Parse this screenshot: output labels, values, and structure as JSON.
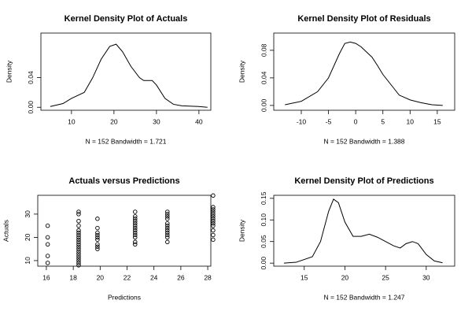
{
  "chart_data": [
    {
      "type": "line",
      "title": "Kernel Density Plot of Actuals",
      "ylabel": "Density",
      "xlabel": "N = 152   Bandwidth = 1.721",
      "color": "#000000",
      "x": [
        5,
        8,
        10,
        13,
        15,
        17,
        19,
        20.5,
        22,
        24,
        26,
        27,
        29,
        30,
        32,
        34,
        36,
        40,
        42
      ],
      "values": [
        0.001,
        0.005,
        0.012,
        0.02,
        0.04,
        0.065,
        0.082,
        0.085,
        0.075,
        0.055,
        0.04,
        0.036,
        0.036,
        0.03,
        0.012,
        0.004,
        0.002,
        0.001,
        0.0
      ],
      "xlim": [
        2.8,
        42.8
      ],
      "ylim": [
        -0.004,
        0.1
      ],
      "xticks": [
        10,
        20,
        30,
        40
      ],
      "yticks": [
        {
          "value": 0,
          "label": "0.00"
        },
        0.04
      ]
    },
    {
      "type": "line",
      "title": "Kernel Density Plot of Residuals",
      "ylabel": "Density",
      "xlabel": "N = 152   Bandwidth = 1.388",
      "color": "#000000",
      "x": [
        -13,
        -10,
        -7,
        -5,
        -3,
        -2,
        -1,
        0,
        1,
        3,
        4,
        5,
        7,
        8,
        10,
        12,
        14,
        16
      ],
      "values": [
        0.001,
        0.006,
        0.02,
        0.04,
        0.075,
        0.09,
        0.092,
        0.09,
        0.085,
        0.07,
        0.058,
        0.045,
        0.025,
        0.015,
        0.008,
        0.004,
        0.001,
        0.0
      ],
      "xlim": [
        -15.06,
        18.2
      ],
      "ylim": [
        -0.007,
        0.105
      ],
      "xticks": [
        -10,
        -5,
        0,
        5,
        10,
        15
      ],
      "yticks": [
        {
          "value": 0,
          "label": "0.00"
        },
        0.04,
        0.08
      ]
    },
    {
      "type": "scatter",
      "title": "Actuals versus Predictions",
      "ylabel": "Actuals",
      "xlabel": "Predictions",
      "color": "#000000",
      "x": [
        16.1,
        16.1,
        16.1,
        16.1,
        16.1,
        18.4,
        18.4,
        18.4,
        18.4,
        18.4,
        18.4,
        18.4,
        18.4,
        18.4,
        18.4,
        18.4,
        18.4,
        18.4,
        18.4,
        18.4,
        18.4,
        18.4,
        18.4,
        18.4,
        18.4,
        19.8,
        19.8,
        19.8,
        19.8,
        19.8,
        19.8,
        19.8,
        19.8,
        19.8,
        22.6,
        22.6,
        22.6,
        22.6,
        22.6,
        22.6,
        22.6,
        22.6,
        22.6,
        22.6,
        22.6,
        22.6,
        22.6,
        25,
        25,
        25,
        25,
        25,
        25,
        25,
        25,
        25,
        25,
        25,
        25,
        28.4,
        28.4,
        28.4,
        28.4,
        28.4,
        28.4,
        28.4,
        28.4,
        28.4,
        28.4,
        28.4,
        28.4,
        28.4
      ],
      "values": [
        9,
        12,
        17,
        20,
        25,
        8,
        9,
        10,
        11,
        12,
        13,
        14,
        15,
        16,
        17,
        18,
        19,
        20,
        21,
        22,
        23,
        25,
        27,
        30,
        31,
        15,
        16,
        17,
        19,
        20,
        21,
        22,
        24,
        28,
        17,
        18,
        20,
        21,
        22,
        23,
        24,
        25,
        26,
        27,
        28,
        29,
        31,
        18,
        20,
        21,
        22,
        23,
        24,
        25,
        26,
        28,
        29,
        30,
        31,
        19,
        21,
        23,
        25,
        26,
        27,
        28,
        29,
        30,
        31,
        32,
        33,
        38
      ],
      "xlim": [
        15.36,
        28.23
      ],
      "ylim": [
        7.6,
        38.1
      ],
      "xticks": [
        16,
        18,
        20,
        22,
        24,
        26,
        28
      ],
      "yticks": [
        10,
        20,
        30
      ]
    },
    {
      "type": "line",
      "title": "Kernel Density Plot of Predictions",
      "ylabel": "Density",
      "xlabel": "N = 152   Bandwidth = 1.247",
      "color": "#000000",
      "x": [
        12.5,
        14,
        16,
        17,
        18,
        18.6,
        19.2,
        20,
        21,
        22,
        23,
        24,
        25,
        26,
        26.8,
        27.5,
        28.3,
        29,
        30,
        31,
        32
      ],
      "values": [
        0.0,
        0.002,
        0.015,
        0.05,
        0.12,
        0.148,
        0.14,
        0.095,
        0.062,
        0.062,
        0.067,
        0.06,
        0.05,
        0.04,
        0.035,
        0.045,
        0.05,
        0.045,
        0.02,
        0.005,
        0.001
      ],
      "xlim": [
        11.25,
        33.5
      ],
      "ylim": [
        -0.007,
        0.157
      ],
      "xticks": [
        15,
        20,
        25,
        30
      ],
      "yticks": [
        {
          "value": 0,
          "label": "0.00"
        },
        0.05,
        {
          "value": 0.1,
          "label": "0.10"
        },
        0.15
      ]
    }
  ]
}
